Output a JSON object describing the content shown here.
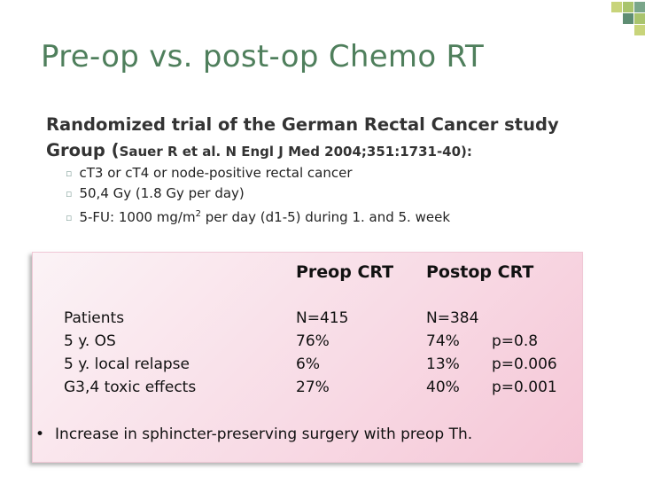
{
  "slide": {
    "title": "Pre-op vs. post-op Chemo RT",
    "intro_main": "Randomized trial of the German Rectal Cancer study Group (",
    "intro_citation": "Sauer R et al. N Engl J Med 2004;351:1731-40):",
    "bullets": [
      "cT3 or cT4 or node-positive rectal cancer",
      "50,4 Gy (1.8 Gy per day)"
    ],
    "bullet3_pre": "5-FU: 1000 mg/m",
    "bullet3_sup": "2",
    "bullet3_post": " per day (d1-5) during 1. and 5. week",
    "accent_colors": [
      "#c8d47a",
      "#a9c46d",
      "#7aa68a",
      "#5e8d73"
    ]
  },
  "table": {
    "col_headers": [
      "Preop CRT",
      "Postop CRT"
    ],
    "rows": [
      {
        "label": "Patients",
        "preop": "N=415",
        "postop": "N=384",
        "p": ""
      },
      {
        "label": "5 y. OS",
        "preop": "76%",
        "postop": "74%",
        "p": "p=0.8"
      },
      {
        "label": "5 y. local relapse",
        "preop": "6%",
        "postop": "13%",
        "p": "p=0.006"
      },
      {
        "label": "G3,4 toxic effects",
        "preop": "27%",
        "postop": "40%",
        "p": "p=0.001"
      }
    ],
    "conclusion_marker": "•",
    "conclusion": "Increase in sphincter-preserving surgery with preop Th."
  }
}
